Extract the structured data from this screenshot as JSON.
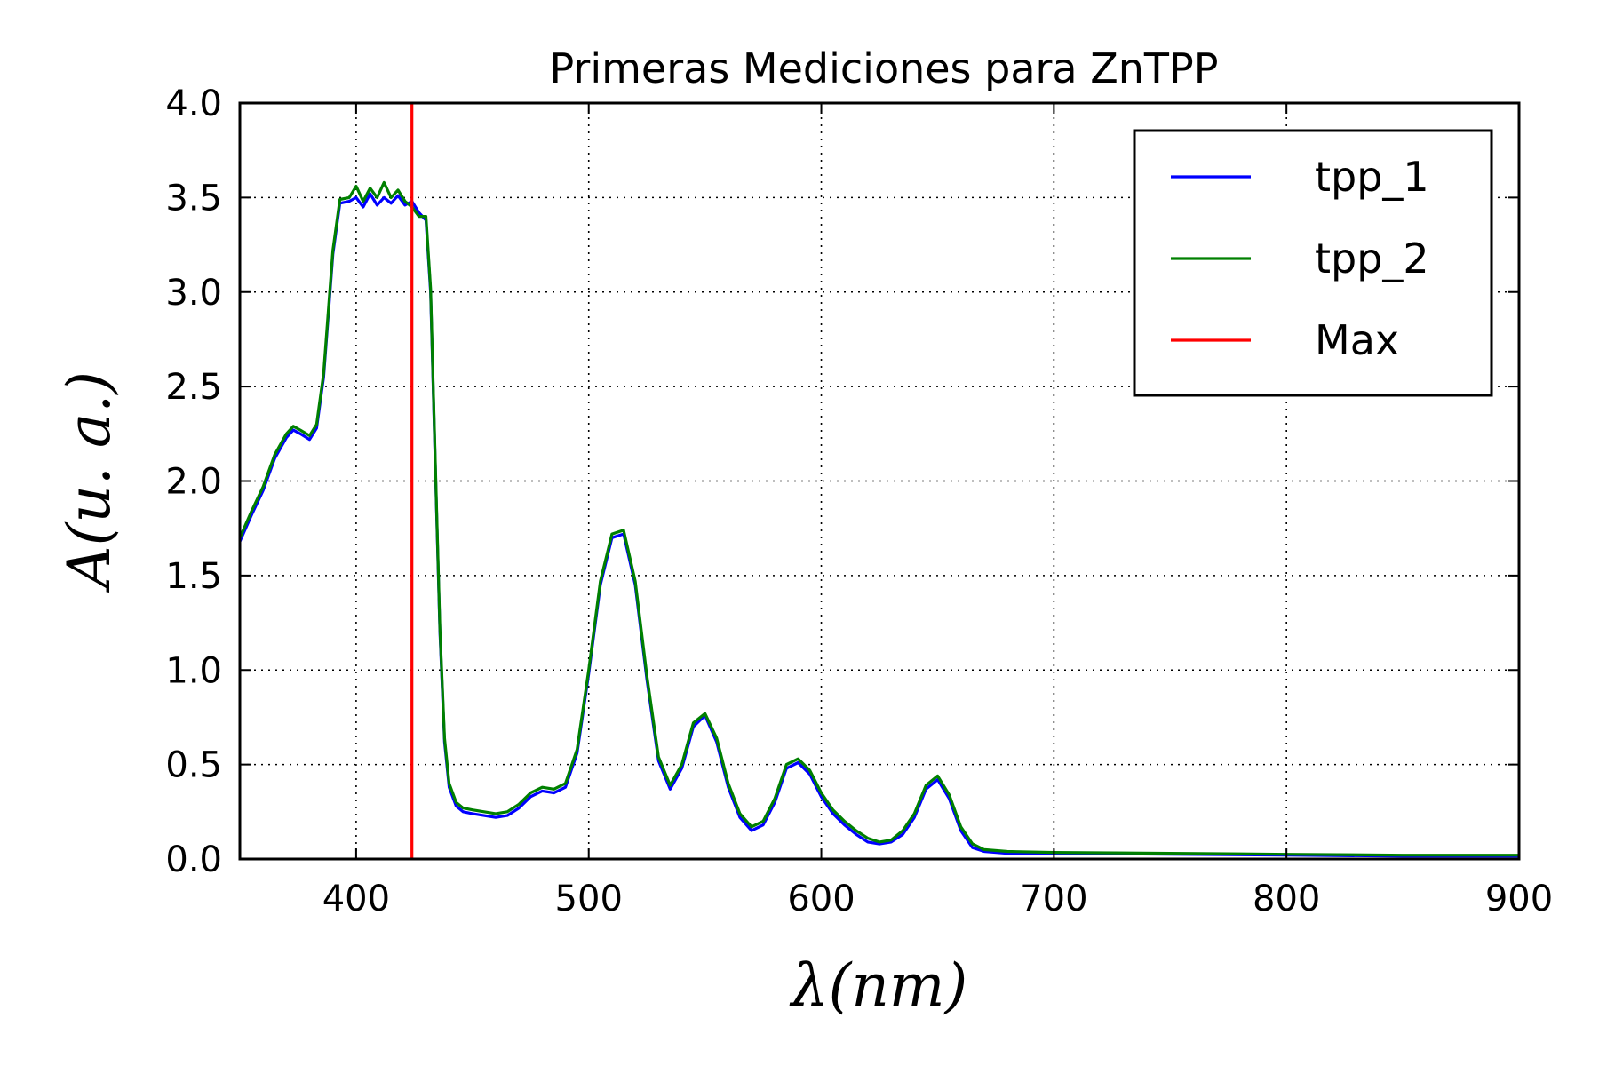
{
  "chart_data": {
    "type": "line",
    "title": "Primeras Mediciones para ZnTPP",
    "xlabel": "λ(nm)",
    "ylabel": "A(u. a.)",
    "xlim": [
      350,
      900
    ],
    "ylim": [
      0,
      4.0
    ],
    "xticks": [
      400,
      500,
      600,
      700,
      800,
      900
    ],
    "yticks": [
      "0.0",
      "0.5",
      "1.0",
      "1.5",
      "2.0",
      "2.5",
      "3.0",
      "3.5",
      "4.0"
    ],
    "grid": true,
    "legend_position": "top-right",
    "series": [
      {
        "name": "tpp_1",
        "color": "#0000ff",
        "x": [
          350,
          355,
          360,
          365,
          370,
          373,
          376,
          380,
          383,
          386,
          390,
          393,
          397,
          400,
          403,
          406,
          409,
          412,
          415,
          418,
          421,
          424,
          427,
          430,
          432,
          434,
          436,
          438,
          440,
          443,
          446,
          450,
          455,
          460,
          465,
          470,
          475,
          480,
          485,
          490,
          495,
          500,
          505,
          510,
          515,
          520,
          525,
          530,
          535,
          540,
          545,
          550,
          555,
          560,
          565,
          570,
          575,
          580,
          585,
          590,
          595,
          600,
          605,
          610,
          615,
          620,
          625,
          630,
          635,
          640,
          645,
          650,
          655,
          660,
          665,
          670,
          680,
          700,
          750,
          800,
          850,
          900
        ],
        "y": [
          1.68,
          1.82,
          1.95,
          2.12,
          2.23,
          2.27,
          2.25,
          2.22,
          2.28,
          2.55,
          3.2,
          3.47,
          3.48,
          3.5,
          3.45,
          3.52,
          3.46,
          3.5,
          3.47,
          3.51,
          3.46,
          3.48,
          3.42,
          3.38,
          3.0,
          2.1,
          1.2,
          0.62,
          0.38,
          0.28,
          0.25,
          0.24,
          0.23,
          0.22,
          0.23,
          0.27,
          0.33,
          0.36,
          0.35,
          0.38,
          0.56,
          0.98,
          1.45,
          1.7,
          1.72,
          1.45,
          0.95,
          0.52,
          0.37,
          0.48,
          0.7,
          0.76,
          0.62,
          0.38,
          0.22,
          0.15,
          0.18,
          0.3,
          0.48,
          0.51,
          0.45,
          0.33,
          0.24,
          0.18,
          0.13,
          0.09,
          0.08,
          0.09,
          0.13,
          0.22,
          0.37,
          0.42,
          0.32,
          0.15,
          0.06,
          0.04,
          0.03,
          0.03,
          0.025,
          0.02,
          0.015,
          0.015
        ]
      },
      {
        "name": "tpp_2",
        "color": "#008000",
        "x": [
          350,
          355,
          360,
          365,
          370,
          373,
          376,
          380,
          383,
          386,
          390,
          393,
          397,
          400,
          403,
          406,
          409,
          412,
          415,
          418,
          421,
          424,
          427,
          430,
          432,
          434,
          436,
          438,
          440,
          443,
          446,
          450,
          455,
          460,
          465,
          470,
          475,
          480,
          485,
          490,
          495,
          500,
          505,
          510,
          515,
          520,
          525,
          530,
          535,
          540,
          545,
          550,
          555,
          560,
          565,
          570,
          575,
          580,
          585,
          590,
          595,
          600,
          605,
          610,
          615,
          620,
          625,
          630,
          635,
          640,
          645,
          650,
          655,
          660,
          665,
          670,
          680,
          700,
          750,
          800,
          850,
          900
        ],
        "y": [
          1.7,
          1.84,
          1.97,
          2.14,
          2.25,
          2.29,
          2.27,
          2.24,
          2.3,
          2.57,
          3.22,
          3.49,
          3.5,
          3.56,
          3.48,
          3.55,
          3.5,
          3.58,
          3.5,
          3.54,
          3.48,
          3.45,
          3.4,
          3.4,
          3.02,
          2.12,
          1.22,
          0.64,
          0.4,
          0.3,
          0.27,
          0.26,
          0.25,
          0.24,
          0.25,
          0.29,
          0.35,
          0.38,
          0.37,
          0.4,
          0.58,
          1.0,
          1.47,
          1.72,
          1.74,
          1.47,
          0.97,
          0.54,
          0.39,
          0.5,
          0.72,
          0.77,
          0.64,
          0.4,
          0.24,
          0.17,
          0.2,
          0.32,
          0.5,
          0.53,
          0.47,
          0.35,
          0.26,
          0.2,
          0.15,
          0.11,
          0.09,
          0.1,
          0.15,
          0.24,
          0.39,
          0.44,
          0.34,
          0.17,
          0.08,
          0.05,
          0.04,
          0.035,
          0.03,
          0.025,
          0.02,
          0.02
        ]
      },
      {
        "name": "Max",
        "color": "#ff0000",
        "x": [
          424,
          424
        ],
        "y": [
          0,
          4.0
        ]
      }
    ]
  }
}
